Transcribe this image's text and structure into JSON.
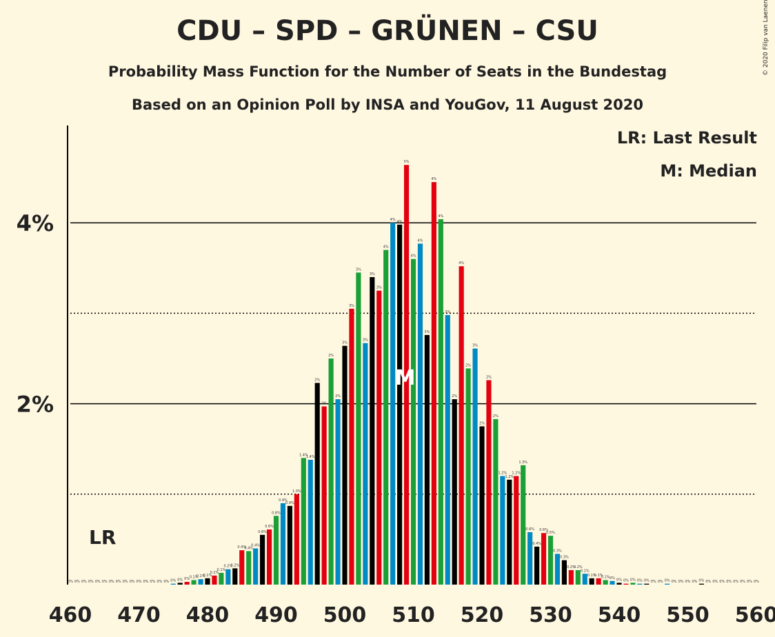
{
  "header": {
    "title": "CDU – SPD – GRÜNEN – CSU",
    "subtitle1": "Probability Mass Function for the Number of Seats in the Bundestag",
    "subtitle2": "Based on an Opinion Poll by INSA and YouGov, 11 August 2020",
    "copyright": "© 2020 Filip van Laenen"
  },
  "legend": {
    "lr": "LR: Last Result",
    "median": "M: Median"
  },
  "markers": {
    "lr_label": "LR",
    "lr_seat": 465,
    "median_label": "M",
    "median_seat": 509
  },
  "colors": {
    "cdu": "#000000",
    "spd": "#E3000F",
    "gruene": "#1AA037",
    "csu": "#008AC5",
    "background": "#FFF8E1"
  },
  "chart_data": {
    "type": "bar",
    "xlabel": "",
    "ylabel": "",
    "xlim": [
      460,
      560
    ],
    "ylim": [
      0,
      5
    ],
    "x_ticks": [
      460,
      470,
      480,
      490,
      500,
      510,
      520,
      530,
      540,
      550,
      560
    ],
    "y_ticks_labeled": [
      {
        "value": 2,
        "label": "2%"
      },
      {
        "value": 4,
        "label": "4%"
      }
    ],
    "y_dotted_gridlines": [
      1,
      3
    ],
    "seats": [
      460,
      461,
      462,
      463,
      464,
      465,
      466,
      467,
      468,
      469,
      470,
      471,
      472,
      473,
      474,
      475,
      476,
      477,
      478,
      479,
      480,
      481,
      482,
      483,
      484,
      485,
      486,
      487,
      488,
      489,
      490,
      491,
      492,
      493,
      494,
      495,
      496,
      497,
      498,
      499,
      500,
      501,
      502,
      503,
      504,
      505,
      506,
      507,
      508,
      509,
      510,
      511,
      512,
      513,
      514,
      515,
      516,
      517,
      518,
      519,
      520,
      521,
      522,
      523,
      524,
      525,
      526,
      527,
      528,
      529,
      530,
      531,
      532,
      533,
      534,
      535,
      536,
      537,
      538,
      539,
      540,
      541,
      542,
      543,
      544,
      545,
      546,
      547,
      548,
      549,
      550,
      551,
      552,
      553,
      554,
      555,
      556,
      557,
      558,
      559,
      560
    ],
    "values": [
      0,
      0,
      0,
      0,
      0,
      0,
      0,
      0,
      0,
      0,
      0,
      0,
      0,
      0,
      0,
      0.01,
      0.02,
      0.03,
      0.05,
      0.06,
      0.07,
      0.1,
      0.13,
      0.17,
      0.18,
      0.38,
      0.37,
      0.4,
      0.55,
      0.61,
      0.76,
      0.9,
      0.87,
      1.0,
      1.4,
      1.38,
      2.23,
      1.97,
      2.5,
      2.05,
      2.64,
      3.05,
      3.45,
      2.67,
      3.4,
      3.25,
      3.7,
      4.0,
      3.98,
      4.64,
      3.6,
      3.77,
      2.76,
      4.45,
      4.04,
      2.98,
      2.05,
      3.52,
      2.39,
      2.61,
      1.75,
      2.26,
      1.83,
      1.2,
      1.16,
      1.2,
      1.32,
      0.58,
      0.42,
      0.57,
      0.54,
      0.34,
      0.27,
      0.16,
      0.16,
      0.12,
      0.07,
      0.07,
      0.05,
      0.04,
      0.02,
      0.01,
      0.02,
      0.01,
      0.01,
      0,
      0,
      0.01,
      0,
      0,
      0,
      0,
      0.01,
      0,
      0,
      0,
      0,
      0,
      0,
      0,
      0
    ],
    "value_labels": [
      "0%",
      "0%",
      "0%",
      "0%",
      "0%",
      "0%",
      "0%",
      "0%",
      "0%",
      "0%",
      "0%",
      "0%",
      "0%",
      "0%",
      "0%",
      "0%",
      "0%",
      "0%",
      "0.1%",
      "0.1%",
      "0.1%",
      "0.1%",
      "0.1%",
      "0.2%",
      "0.2%",
      "0.4%",
      "0.4%",
      "0.4%",
      "0.6%",
      "0.6%",
      "0.8%",
      "0.9%",
      "0.9%",
      "1.0%",
      "1.4%",
      "1.4%",
      "2%",
      "2%",
      "2%",
      "2%",
      "3%",
      "3%",
      "3%",
      "3%",
      "3%",
      "3%",
      "4%",
      "4%",
      "4%",
      "5%",
      "4%",
      "4%",
      "3%",
      "4%",
      "4%",
      "3%",
      "2%",
      "4%",
      "2%",
      "3%",
      "2%",
      "2%",
      "2%",
      "1.2%",
      "1.2%",
      "1.2%",
      "1.3%",
      "0.6%",
      "0.4%",
      "0.6%",
      "0.5%",
      "0.3%",
      "0.3%",
      "0.2%",
      "0.2%",
      "0.1%",
      "0.1%",
      "0.1%",
      "0.1%",
      "0%",
      "0%",
      "0%",
      "0%",
      "0%",
      "0%",
      "0%",
      "0%",
      "0%",
      "0%",
      "0%",
      "0%",
      "0%",
      "0%",
      "0%",
      "0%",
      "0%",
      "0%",
      "0%",
      "0%",
      "0%",
      "0%"
    ]
  }
}
